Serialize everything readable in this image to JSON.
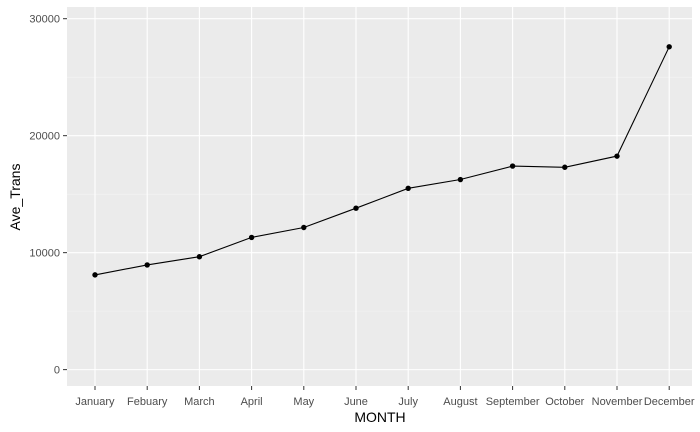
{
  "chart_data": {
    "type": "line",
    "title": "",
    "xlabel": "MONTH",
    "ylabel": "Ave_Trans",
    "categories": [
      "January",
      "Febuary",
      "March",
      "April",
      "May",
      "June",
      "July",
      "August",
      "September",
      "October",
      "November",
      "December"
    ],
    "series": [
      {
        "values": [
          8100,
          8950,
          9650,
          11300,
          12150,
          13800,
          15500,
          16250,
          17400,
          17300,
          18250,
          27600
        ]
      }
    ],
    "ylim": [
      -1400,
      31000
    ],
    "yticks": [
      0,
      10000,
      20000,
      30000
    ],
    "ytick_labels": [
      "0",
      "10000",
      "20000",
      "30000"
    ],
    "grid": true,
    "legend": "none",
    "colors": {
      "panel": "#ebebeb",
      "grid_major": "#ffffff",
      "grid_minor": "#f5f5f5",
      "line": "#000000",
      "point": "#000000"
    }
  }
}
